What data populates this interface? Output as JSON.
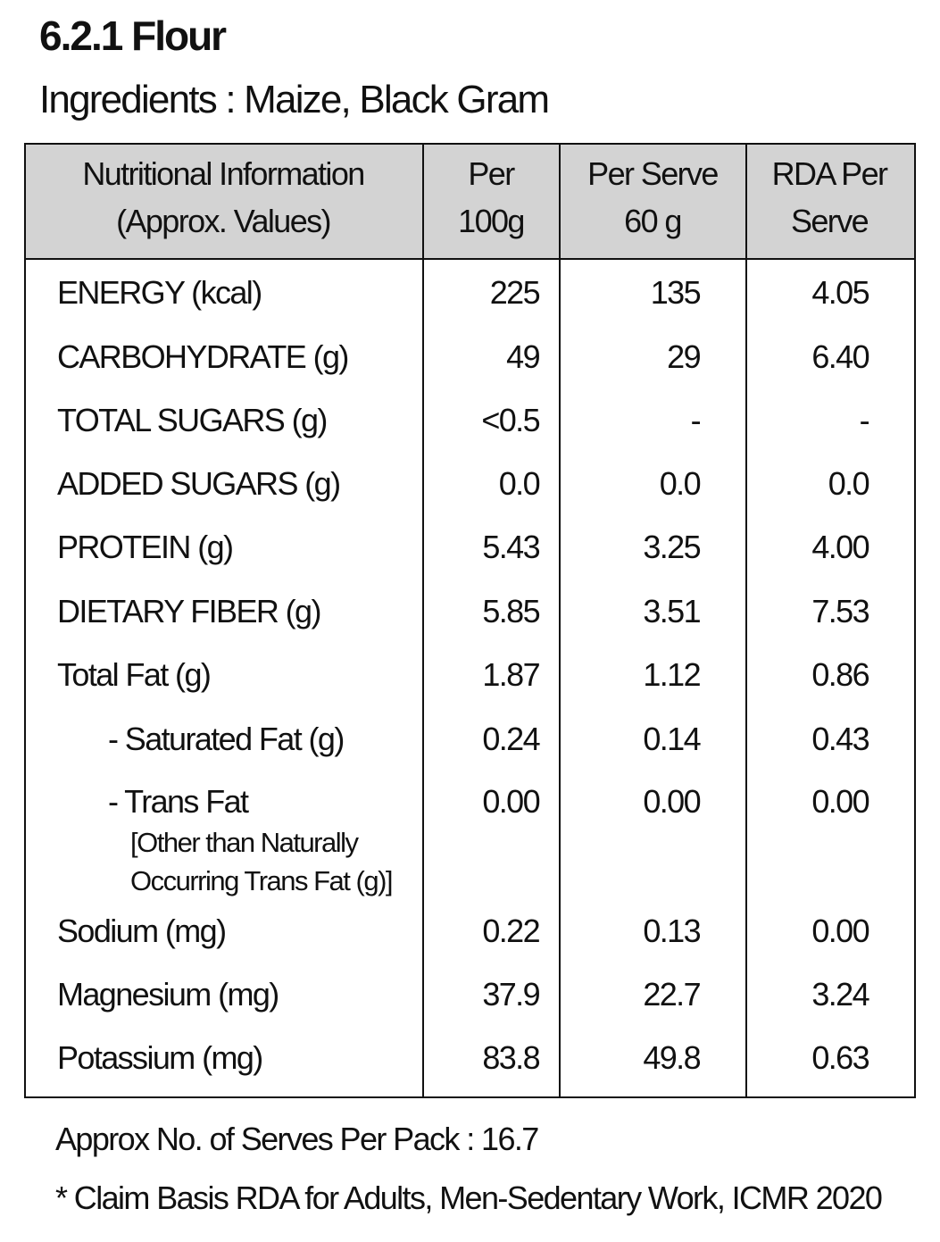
{
  "title": "6.2.1 Flour",
  "ingredients": "Ingredients : Maize, Black Gram",
  "table": {
    "header": [
      [
        "Nutritional Information",
        "(Approx. Values)"
      ],
      [
        "Per",
        "100g"
      ],
      [
        "Per Serve",
        "60 g"
      ],
      [
        "RDA Per",
        "Serve"
      ]
    ],
    "rows": [
      {
        "label": "ENERGY (kcal)",
        "values": [
          "225",
          "135",
          "4.05"
        ]
      },
      {
        "label": "CARBOHYDRATE (g)",
        "values": [
          "49",
          "29",
          "6.40"
        ]
      },
      {
        "label": "TOTAL SUGARS (g)",
        "values": [
          "<0.5",
          "-",
          "-"
        ]
      },
      {
        "label": "ADDED SUGARS (g)",
        "values": [
          "0.0",
          "0.0",
          "0.0"
        ]
      },
      {
        "label": "PROTEIN (g)",
        "values": [
          "5.43",
          "3.25",
          "4.00"
        ]
      },
      {
        "label": "DIETARY FIBER (g)",
        "values": [
          "5.85",
          "3.51",
          "7.53"
        ]
      },
      {
        "label": "Total Fat (g)",
        "values": [
          "1.87",
          "1.12",
          "0.86"
        ]
      },
      {
        "label": "- Saturated Fat (g)",
        "values": [
          "0.24",
          "0.14",
          "0.43"
        ]
      },
      {
        "label": "- Trans Fat",
        "sublabel": [
          "[Other than Naturally",
          "Occurring Trans Fat (g)]"
        ],
        "values": [
          "0.00",
          "0.00",
          "0.00"
        ]
      },
      {
        "label": "Sodium (mg)",
        "values": [
          "0.22",
          "0.13",
          "0.00"
        ]
      },
      {
        "label": "Magnesium (mg)",
        "values": [
          "37.9",
          "22.7",
          "3.24"
        ]
      },
      {
        "label": "Potassium (mg)",
        "values": [
          "83.8",
          "49.8",
          "0.63"
        ]
      }
    ]
  },
  "notes": [
    "Approx No. of Serves Per Pack : 16.7",
    "* Claim Basis RDA for Adults, Men-Sedentary Work, ICMR 2020"
  ]
}
